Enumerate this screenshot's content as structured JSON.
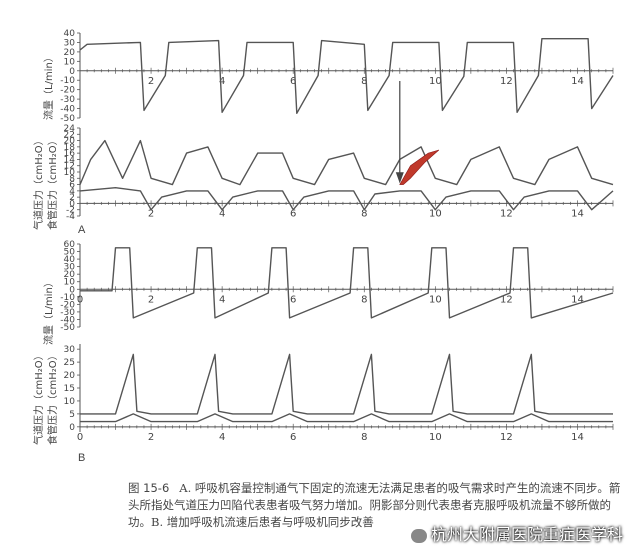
{
  "panel_labels": {
    "a": "A",
    "b": "B"
  },
  "y_labels": {
    "a_flow": "流量（L/min）",
    "a_pressure": "气道压力（cmH₂O）",
    "a_esoph": "食管压力（cmH₂O）",
    "b_flow": "流量（L/min）",
    "b_pressure": "气道压力（cmH₂O）",
    "b_esoph": "食管压力（cmH₂O）"
  },
  "caption": {
    "figure_num": "图 15-6",
    "text": "A. 呼吸机容量控制通气下固定的流速无法满足患者的吸气需求时产生的流速不同步。箭头所指处气道压力凹陷代表患者吸气努力增加。阴影部分则代表患者克服呼吸机流量不够所做的功。B. 增加呼吸机流速后患者与呼吸机同步改善"
  },
  "watermark": "杭州大附属医院重症医学科",
  "colors": {
    "trace": "#555555",
    "axis": "#555555",
    "shade": "#c0392b",
    "arrow": "#444444"
  },
  "chart_data": [
    {
      "type": "line",
      "panel": "A",
      "subplot": "flow",
      "ylim": [
        -50,
        40
      ],
      "yticks": [
        40,
        30,
        20,
        10,
        0,
        -10,
        -20,
        -30,
        -40,
        -50
      ],
      "xlim": [
        0,
        15
      ],
      "xticks": [
        2,
        4,
        6,
        8,
        10,
        12,
        14
      ],
      "breath_starts": [
        1.7,
        3.9,
        6.0,
        8.0,
        10.1,
        12.2,
        14.3
      ],
      "inspiratory_flow": 30,
      "peak_expiratory_flow": -45,
      "series": [
        {
          "x": [
            0,
            0.2,
            1.7,
            1.8,
            2.4,
            2.5,
            3.9,
            4.0,
            4.6,
            4.7,
            6.0,
            6.1,
            6.7,
            6.8,
            8.0,
            8.1,
            8.7,
            8.8,
            10.1,
            10.2,
            10.8,
            10.9,
            12.2,
            12.3,
            12.9,
            13.0,
            14.3,
            14.4,
            15.0
          ],
          "y": [
            22,
            28,
            30,
            -42,
            -5,
            30,
            32,
            -44,
            -5,
            30,
            30,
            -45,
            -5,
            32,
            28,
            -42,
            -5,
            30,
            30,
            -42,
            -6,
            30,
            30,
            -44,
            -5,
            34,
            34,
            -40,
            -5
          ]
        }
      ]
    },
    {
      "type": "line",
      "panel": "A",
      "subplot": "pressure",
      "ylim": [
        -4,
        24
      ],
      "yticks": [
        24,
        22,
        20,
        18,
        16,
        14,
        12,
        10,
        8,
        6,
        4,
        2,
        0,
        -2,
        -4
      ],
      "xlim": [
        0,
        15
      ],
      "xticks": [
        2,
        4,
        6,
        8,
        10,
        12,
        14
      ],
      "peak_airway_pressure": [
        20,
        18,
        16,
        16,
        18,
        16,
        16
      ],
      "annotations": [
        "arrow at x≈9.0 marking airway pressure dip",
        "shaded area near x≈9.5 (patient work)"
      ],
      "series": [
        {
          "x": [
            0,
            0.3,
            0.7,
            1.2,
            1.7,
            2.0,
            2.6,
            3.0,
            3.6,
            4.0,
            4.5,
            5.0,
            5.7,
            6.0,
            6.6,
            7.0,
            7.7,
            8.0,
            8.6,
            9.0,
            9.6,
            10.0,
            10.6,
            11.0,
            11.8,
            12.2,
            12.8,
            13.2,
            14.0,
            14.4,
            15.0
          ],
          "y": [
            6,
            14,
            20,
            8,
            20,
            8,
            6,
            16,
            18,
            8,
            6,
            16,
            16,
            8,
            6,
            14,
            16,
            8,
            6,
            14,
            18,
            8,
            6,
            14,
            18,
            8,
            6,
            14,
            18,
            8,
            6
          ]
        },
        {
          "x": [
            0,
            1.0,
            1.7,
            2.0,
            2.3,
            3.0,
            3.6,
            4.0,
            4.3,
            5.0,
            5.7,
            6.0,
            6.3,
            7.0,
            7.7,
            8.0,
            8.3,
            9.0,
            9.6,
            10.0,
            10.3,
            11.0,
            11.8,
            12.2,
            12.5,
            13.2,
            14.0,
            14.4,
            15.0
          ],
          "y": [
            4,
            5,
            4,
            -2,
            2,
            4,
            4,
            -2,
            2,
            4,
            4,
            -2,
            2,
            4,
            4,
            -2,
            3,
            4,
            4,
            -2,
            2,
            4,
            4,
            -2,
            2,
            4,
            4,
            -2,
            4
          ]
        }
      ]
    },
    {
      "type": "line",
      "panel": "B",
      "subplot": "flow",
      "ylim": [
        -50,
        60
      ],
      "yticks": [
        60,
        50,
        40,
        30,
        20,
        10,
        0,
        -10,
        -20,
        -30,
        -40,
        -50
      ],
      "xlim": [
        0,
        15
      ],
      "xticks": [
        0,
        2,
        4,
        6,
        8,
        10,
        12,
        14
      ],
      "breath_starts": [
        0.9,
        3.2,
        5.3,
        7.6,
        9.8,
        12.1
      ],
      "inspiratory_flow": 55,
      "peak_expiratory_flow": -38,
      "series": [
        {
          "x": [
            0,
            0.9,
            1.0,
            1.4,
            1.5,
            3.2,
            3.3,
            3.7,
            3.8,
            5.3,
            5.4,
            5.8,
            5.9,
            7.6,
            7.7,
            8.1,
            8.2,
            9.8,
            9.9,
            10.3,
            10.4,
            12.1,
            12.2,
            12.6,
            12.7,
            15.0
          ],
          "y": [
            -2,
            -2,
            55,
            55,
            -38,
            -5,
            55,
            55,
            -38,
            -5,
            55,
            55,
            -38,
            -5,
            55,
            55,
            -38,
            -5,
            55,
            55,
            -38,
            -5,
            55,
            55,
            -38,
            -5
          ]
        }
      ]
    },
    {
      "type": "line",
      "panel": "B",
      "subplot": "pressure",
      "ylim": [
        -2,
        32
      ],
      "yticks": [
        30,
        25,
        20,
        15,
        10,
        5,
        0
      ],
      "xlim": [
        0,
        15
      ],
      "xticks": [
        0,
        2,
        4,
        6,
        8,
        10,
        12,
        14
      ],
      "peak_airway_pressure": [
        28,
        28,
        28,
        28,
        28,
        28
      ],
      "series": [
        {
          "x": [
            0,
            1.0,
            1.5,
            1.6,
            2.0,
            3.3,
            3.8,
            3.9,
            4.3,
            5.4,
            5.9,
            6.0,
            6.4,
            7.7,
            8.2,
            8.3,
            8.7,
            9.9,
            10.4,
            10.5,
            10.9,
            12.2,
            12.7,
            12.8,
            13.2,
            15.0
          ],
          "y": [
            5,
            5,
            28,
            6,
            5,
            5,
            28,
            6,
            5,
            5,
            28,
            6,
            5,
            5,
            28,
            6,
            5,
            5,
            28,
            6,
            5,
            5,
            28,
            6,
            5,
            5
          ]
        },
        {
          "x": [
            0,
            1.0,
            1.5,
            2.0,
            3.3,
            3.8,
            4.3,
            5.4,
            5.9,
            6.4,
            7.7,
            8.2,
            8.7,
            9.9,
            10.4,
            10.9,
            12.2,
            12.7,
            13.2,
            15.0
          ],
          "y": [
            2,
            2,
            5,
            2,
            2,
            5,
            2,
            2,
            5,
            2,
            2,
            5,
            2,
            2,
            5,
            2,
            2,
            5,
            2,
            2
          ]
        }
      ]
    }
  ]
}
